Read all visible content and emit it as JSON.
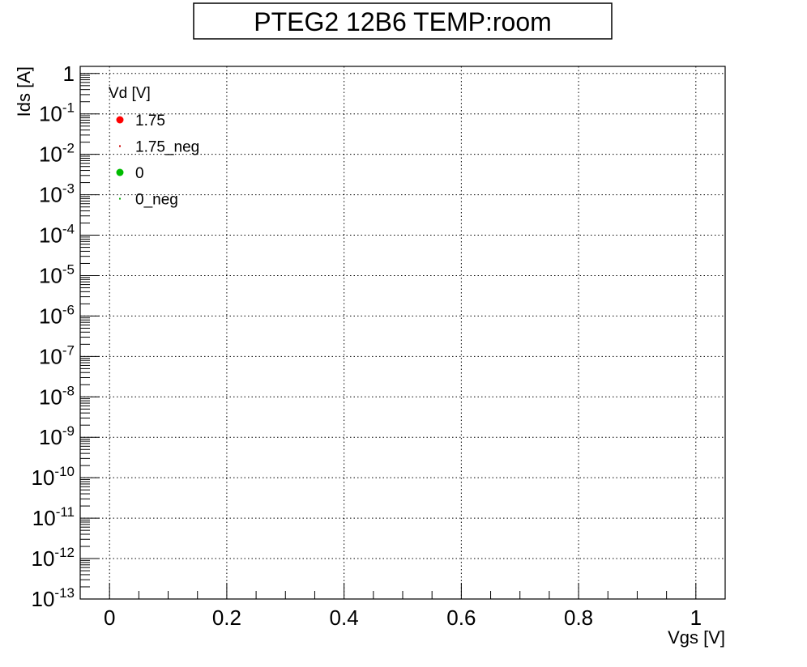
{
  "chart_data": {
    "type": "scatter",
    "title": "PTEG2 12B6 TEMP:room",
    "xlabel": "Vgs [V]",
    "ylabel": "Ids [A]",
    "xlim": [
      -0.05,
      1.05
    ],
    "ylim": [
      1e-13,
      1.5
    ],
    "yscale": "log",
    "grid": true,
    "x_ticks": [
      {
        "value": 0,
        "label": "0"
      },
      {
        "value": 0.2,
        "label": "0.2"
      },
      {
        "value": 0.4,
        "label": "0.4"
      },
      {
        "value": 0.6,
        "label": "0.6"
      },
      {
        "value": 0.8,
        "label": "0.8"
      },
      {
        "value": 1,
        "label": "1"
      }
    ],
    "y_ticks": [
      {
        "exp": 0,
        "base": "1",
        "sup": ""
      },
      {
        "exp": -1,
        "base": "10",
        "sup": "-1"
      },
      {
        "exp": -2,
        "base": "10",
        "sup": "-2"
      },
      {
        "exp": -3,
        "base": "10",
        "sup": "-3"
      },
      {
        "exp": -4,
        "base": "10",
        "sup": "-4"
      },
      {
        "exp": -5,
        "base": "10",
        "sup": "-5"
      },
      {
        "exp": -6,
        "base": "10",
        "sup": "-6"
      },
      {
        "exp": -7,
        "base": "10",
        "sup": "-7"
      },
      {
        "exp": -8,
        "base": "10",
        "sup": "-8"
      },
      {
        "exp": -9,
        "base": "10",
        "sup": "-9"
      },
      {
        "exp": -10,
        "base": "10",
        "sup": "-10"
      },
      {
        "exp": -11,
        "base": "10",
        "sup": "-11"
      },
      {
        "exp": -12,
        "base": "10",
        "sup": "-12"
      },
      {
        "exp": -13,
        "base": "10",
        "sup": "-13"
      }
    ],
    "legend": {
      "title": "Vd [V]",
      "position": "top-left",
      "entries": [
        {
          "name": "1.75",
          "color": "#ff0000",
          "marker": "circle"
        },
        {
          "name": "1.75_neg",
          "color": "#cc0000",
          "marker": "dot"
        },
        {
          "name": "0",
          "color": "#00bb00",
          "marker": "circle"
        },
        {
          "name": "0_neg",
          "color": "#00aa00",
          "marker": "dot"
        }
      ]
    },
    "series": [
      {
        "name": "1.75",
        "points": []
      },
      {
        "name": "1.75_neg",
        "points": []
      },
      {
        "name": "0",
        "points": []
      },
      {
        "name": "0_neg",
        "points": []
      }
    ]
  }
}
